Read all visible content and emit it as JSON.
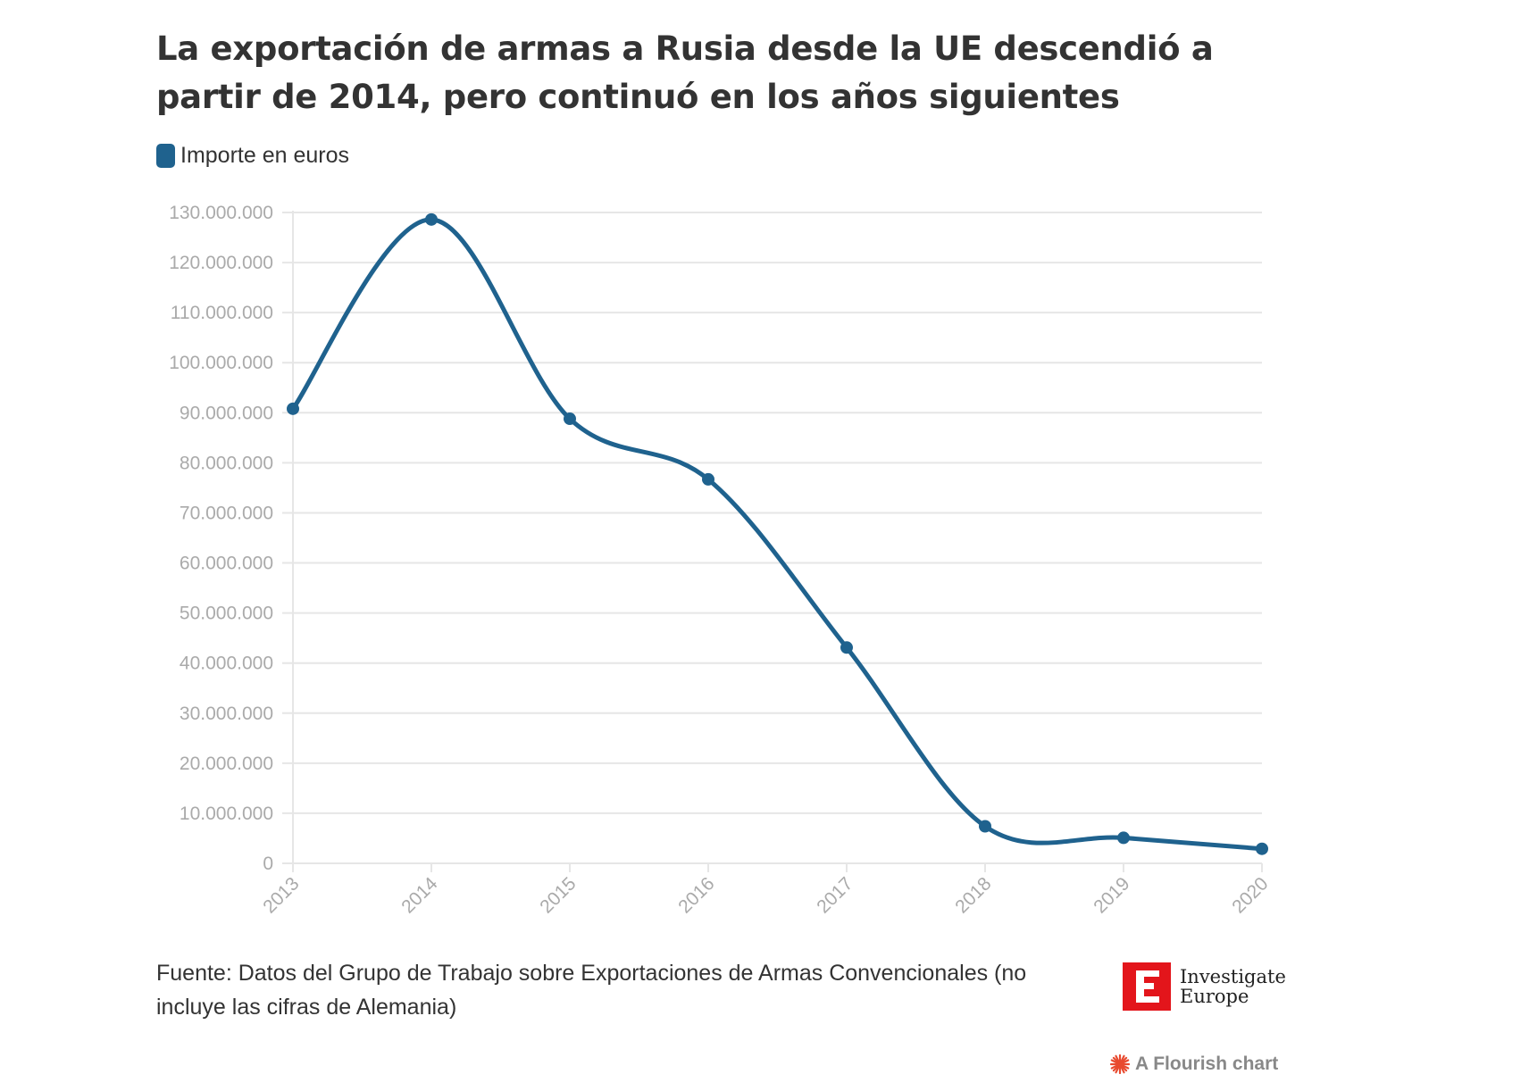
{
  "title": "La exportación de armas a Rusia desde la UE descendió a partir de 2014, pero continuó en los años siguientes",
  "legend": {
    "label": "Importe en euros",
    "color": "#1f628e"
  },
  "source": "Fuente: Datos del Grupo de Trabajo sobre Exportaciones de Armas Convencionales (no incluye las cifras de Alemania)",
  "logo": {
    "line1": "Investigate",
    "line2": "Europe",
    "color": "#e3151b"
  },
  "credit": "A Flourish chart",
  "chart_data": {
    "type": "line",
    "x": [
      "2013",
      "2014",
      "2015",
      "2016",
      "2017",
      "2018",
      "2019",
      "2020"
    ],
    "series": [
      {
        "name": "Importe en euros",
        "values": [
          90800000,
          128600000,
          88800000,
          76700000,
          43100000,
          7400000,
          5100000,
          2900000
        ]
      }
    ],
    "ylim": [
      0,
      130000000
    ],
    "yticks": [
      0,
      10000000,
      20000000,
      30000000,
      40000000,
      50000000,
      60000000,
      70000000,
      80000000,
      90000000,
      100000000,
      110000000,
      120000000,
      130000000
    ],
    "ytick_labels": [
      "0",
      "10.000.000",
      "20.000.000",
      "30.000.000",
      "40.000.000",
      "50.000.000",
      "60.000.000",
      "70.000.000",
      "80.000.000",
      "90.000.000",
      "100.000.000",
      "110.000.000",
      "120.000.000",
      "130.000.000"
    ],
    "xlabel": "",
    "ylabel": "",
    "grid": true,
    "line_color": "#1f628e"
  }
}
